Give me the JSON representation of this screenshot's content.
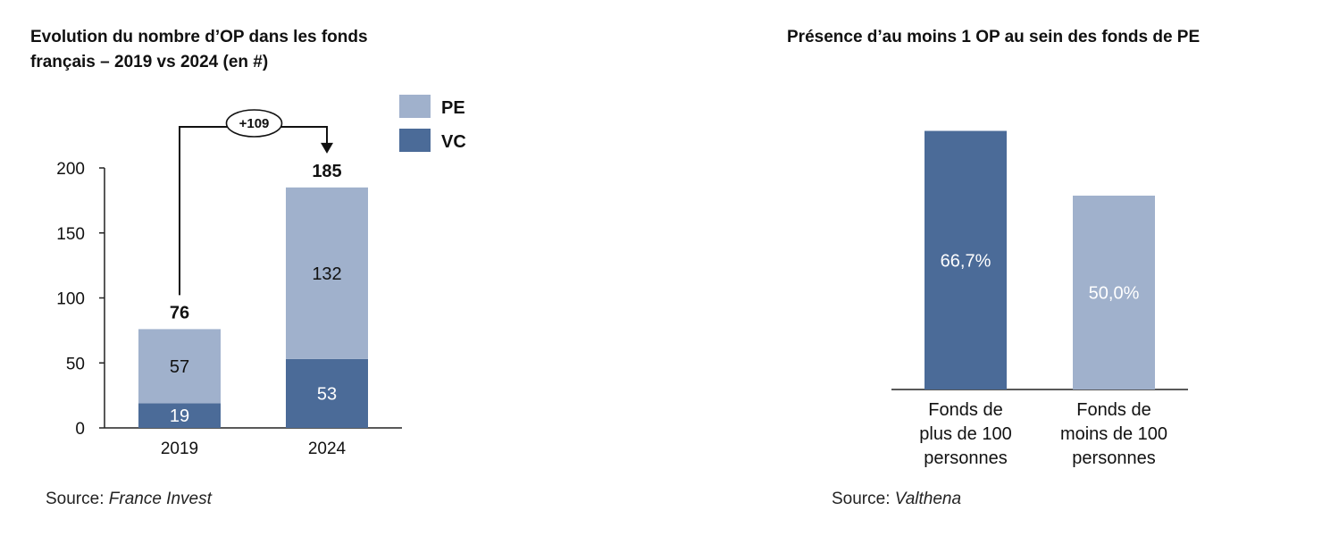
{
  "colors": {
    "pe": "#a0b1cc",
    "vc": "#4b6b98",
    "axis": "#222222",
    "label_dark": "#111111",
    "label_light": "#ffffff"
  },
  "left_chart": {
    "title_line1": "Evolution du nombre d’OP dans les fonds",
    "title_line2": "français – 2019 vs 2024 (en #)",
    "source_prefix": "Source: ",
    "source_name": "France Invest",
    "delta_label": "+109"
  },
  "right_chart": {
    "title": "Présence d’au moins 1 OP au sein des fonds de PE",
    "source_prefix": "Source: ",
    "source_name": "Valthena"
  },
  "chart_data": [
    {
      "type": "bar",
      "stacked": true,
      "categories": [
        "2019",
        "2024"
      ],
      "series": [
        {
          "name": "VC",
          "values": [
            19,
            53
          ],
          "value_labels": [
            "19",
            "53"
          ]
        },
        {
          "name": "PE",
          "values": [
            57,
            132
          ],
          "value_labels": [
            "57",
            "132"
          ]
        }
      ],
      "totals": [
        76,
        185
      ],
      "total_labels": [
        "76",
        "185"
      ],
      "annotation": "+109",
      "ylim": [
        0,
        200
      ],
      "yticks": [
        0,
        50,
        100,
        150,
        200
      ],
      "ytick_labels": [
        "0",
        "50",
        "100",
        "150",
        "200"
      ],
      "legend": [
        "PE",
        "VC"
      ],
      "legend_position": "top-right",
      "grid": false
    },
    {
      "type": "bar",
      "categories": [
        [
          "Fonds de",
          "plus de 100",
          "personnes"
        ],
        [
          "Fonds de",
          "moins de 100",
          "personnes"
        ]
      ],
      "values": [
        66.7,
        50.0
      ],
      "value_labels": [
        "66,7%",
        "50,0%"
      ],
      "ylim": [
        0,
        100
      ],
      "grid": false,
      "show_y_axis": false
    }
  ]
}
